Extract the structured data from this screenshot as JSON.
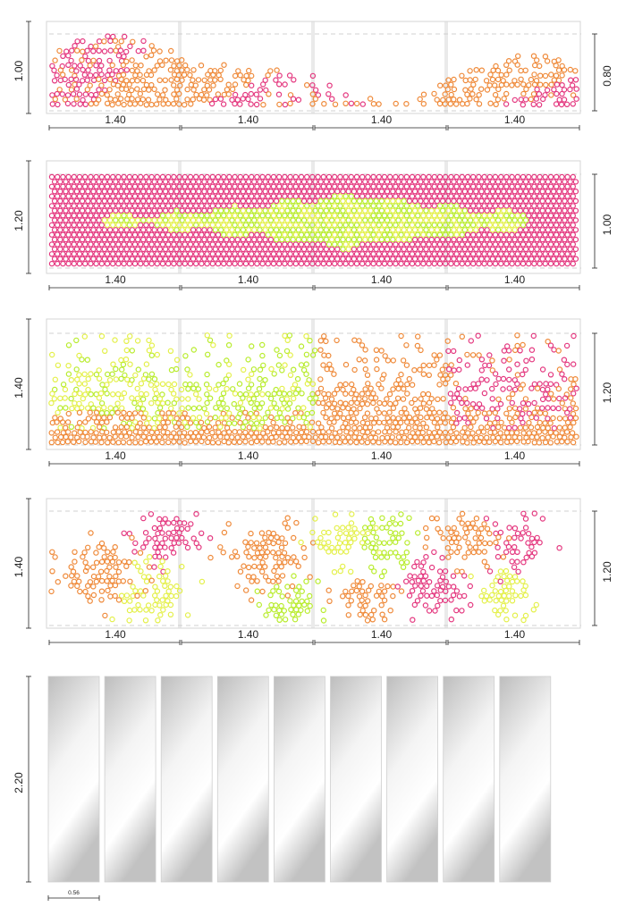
{
  "colors": {
    "pink": "#e4387f",
    "orange": "#ef8a3a",
    "lime": "#b8ec2c",
    "yellow": "#e4f04a",
    "frame": "#d6d6d6",
    "guide": "#c4c4c4",
    "dim": "#222222"
  },
  "rows": [
    {
      "name": "pattern-row-1",
      "left_label": "1.00",
      "right_label": "0.80",
      "panel_labels": [
        "1.40",
        "1.40",
        "1.40",
        "1.40"
      ],
      "pattern": "mixed-wave",
      "colors": [
        "pink",
        "orange"
      ]
    },
    {
      "name": "pattern-row-2",
      "left_label": "1.20",
      "right_label": "1.00",
      "panel_labels": [
        "1.40",
        "1.40",
        "1.40",
        "1.40"
      ],
      "pattern": "full-band",
      "colors": [
        "pink",
        "lime",
        "yellow"
      ]
    },
    {
      "name": "pattern-row-3",
      "left_label": "1.40",
      "right_label": "1.20",
      "panel_labels": [
        "1.40",
        "1.40",
        "1.40",
        "1.40"
      ],
      "pattern": "scatter-gradient",
      "colors": [
        "yellow",
        "lime",
        "orange",
        "pink"
      ]
    },
    {
      "name": "pattern-row-4",
      "left_label": "1.40",
      "right_label": "1.20",
      "panel_labels": [
        "1.40",
        "1.40",
        "1.40",
        "1.40"
      ],
      "pattern": "clusters",
      "colors": [
        "orange",
        "pink",
        "yellow",
        "lime"
      ]
    }
  ],
  "panels_section": {
    "left_label": "2.20",
    "width_label": "0.56",
    "panel_count": 9
  }
}
